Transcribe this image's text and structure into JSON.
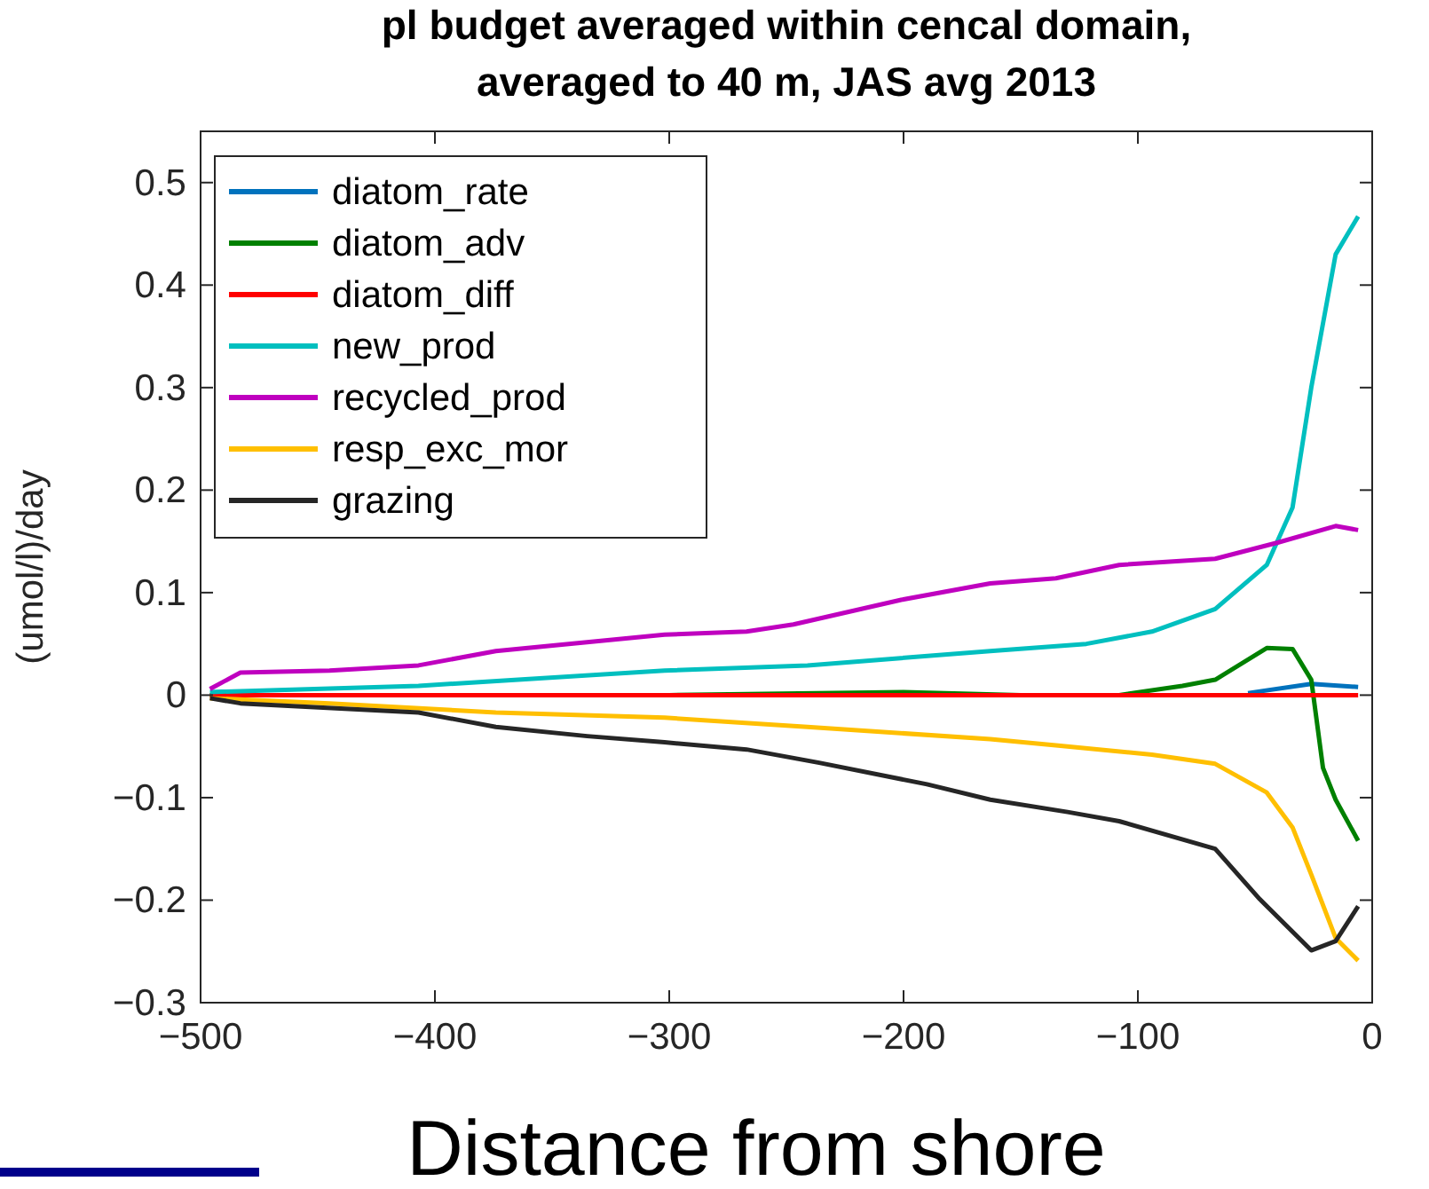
{
  "chart_data": {
    "type": "line",
    "title": "pl budget averaged within cencal domain,\naveraged to 40 m, JAS avg 2013",
    "xlabel": "Distance from shore",
    "ylabel": "(umol/l)/day",
    "xlim": [
      -500,
      0
    ],
    "ylim": [
      -0.3,
      0.55
    ],
    "xticks": [
      -500,
      -400,
      -300,
      -200,
      -100,
      0
    ],
    "yticks": [
      -0.3,
      -0.2,
      -0.1,
      0,
      0.1,
      0.2,
      0.3,
      0.4,
      0.5
    ],
    "grid": false,
    "legend": "top left",
    "series": [
      {
        "name": "diatom_rate",
        "color": "#0072bd",
        "x": [
          -53,
          -26,
          -6
        ],
        "values": [
          0.002,
          0.011,
          0.008
        ]
      },
      {
        "name": "diatom_adv",
        "color": "#008000",
        "x": [
          -496,
          -300,
          -200,
          -150,
          -108,
          -81,
          -67,
          -45,
          -34,
          -26,
          -21,
          -15.6,
          -6
        ],
        "values": [
          0,
          0,
          0.003,
          0,
          0,
          0.009,
          0.015,
          0.046,
          0.045,
          0.015,
          -0.071,
          -0.102,
          -0.142
        ]
      },
      {
        "name": "diatom_diff",
        "color": "#ff0000",
        "x": [
          -496,
          -6
        ],
        "values": [
          0,
          0
        ]
      },
      {
        "name": "new_prod",
        "color": "#00bfbf",
        "x": [
          -496,
          -407,
          -302,
          -241,
          -163,
          -122,
          -94,
          -67,
          -45,
          -34,
          -26,
          -15.6,
          -6
        ],
        "values": [
          0.003,
          0.009,
          0.024,
          0.029,
          0.043,
          0.05,
          0.062,
          0.084,
          0.127,
          0.183,
          0.3,
          0.43,
          0.467
        ]
      },
      {
        "name": "recycled_prod",
        "color": "#bf00bf",
        "x": [
          -496,
          -483,
          -445,
          -407,
          -374,
          -302,
          -267,
          -247,
          -201,
          -163,
          -135,
          -108,
          -67,
          -40,
          -15.6,
          -6
        ],
        "values": [
          0.006,
          0.022,
          0.024,
          0.029,
          0.043,
          0.059,
          0.062,
          0.069,
          0.093,
          0.109,
          0.114,
          0.127,
          0.133,
          0.149,
          0.165,
          0.161
        ]
      },
      {
        "name": "resp_exc_mor",
        "color": "#ffbf00",
        "x": [
          -496,
          -445,
          -374,
          -302,
          -241,
          -163,
          -135,
          -94,
          -67,
          -45,
          -34,
          -26,
          -15.6,
          -6
        ],
        "values": [
          -0.003,
          -0.008,
          -0.017,
          -0.022,
          -0.031,
          -0.043,
          -0.049,
          -0.058,
          -0.067,
          -0.095,
          -0.129,
          -0.175,
          -0.237,
          -0.259
        ]
      },
      {
        "name": "grazing",
        "color": "#262626",
        "x": [
          -496,
          -483,
          -407,
          -374,
          -335,
          -302,
          -267,
          -236,
          -190,
          -163,
          -130,
          -108,
          -67,
          -48,
          -26,
          -15.6,
          -6
        ],
        "values": [
          -0.003,
          -0.008,
          -0.017,
          -0.031,
          -0.04,
          -0.046,
          -0.053,
          -0.066,
          -0.087,
          -0.102,
          -0.114,
          -0.123,
          -0.15,
          -0.199,
          -0.249,
          -0.24,
          -0.206
        ]
      }
    ]
  }
}
